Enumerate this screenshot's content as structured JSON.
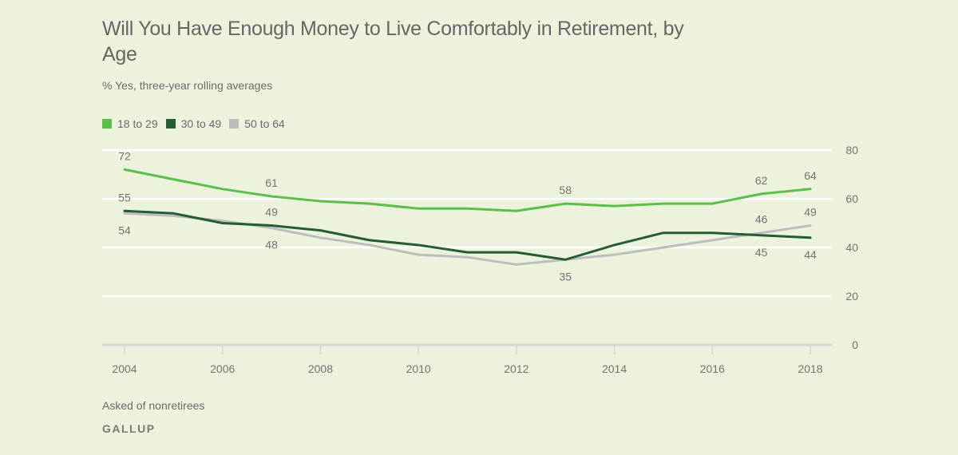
{
  "chart_data": {
    "type": "line",
    "title": "Will You Have Enough Money to Live Comfortably in Retirement, by Age",
    "subtitle": "% Yes, three-year rolling averages",
    "xlabel": "",
    "ylabel": "",
    "x": [
      2004,
      2005,
      2006,
      2007,
      2008,
      2009,
      2010,
      2011,
      2012,
      2013,
      2014,
      2015,
      2016,
      2017,
      2018
    ],
    "xticks": [
      "2004",
      "2006",
      "2008",
      "2010",
      "2012",
      "2014",
      "2016",
      "2018"
    ],
    "yticks": [
      "0",
      "20",
      "40",
      "60",
      "80"
    ],
    "ylim": [
      0,
      80
    ],
    "xlim": [
      2004,
      2018
    ],
    "grid": true,
    "legend_position": "top-left",
    "series": [
      {
        "name": "18 to 29",
        "color": "#5cbf4a",
        "values": [
          72,
          68,
          64,
          61,
          59,
          58,
          56,
          56,
          55,
          58,
          57,
          58,
          58,
          62,
          64
        ]
      },
      {
        "name": "30 to 49",
        "color": "#255c33",
        "values": [
          55,
          54,
          50,
          49,
          47,
          43,
          41,
          38,
          38,
          35,
          41,
          46,
          46,
          45,
          44
        ]
      },
      {
        "name": "50 to 64",
        "color": "#bdbdbd",
        "values": [
          54,
          53,
          51,
          48,
          44,
          41,
          37,
          36,
          33,
          35,
          37,
          40,
          43,
          46,
          49
        ]
      }
    ],
    "annotations": [
      {
        "series": 0,
        "x": 2004,
        "label": "72",
        "pos": "above"
      },
      {
        "series": 0,
        "x": 2007,
        "label": "61",
        "pos": "above"
      },
      {
        "series": 0,
        "x": 2013,
        "label": "58",
        "pos": "above"
      },
      {
        "series": 0,
        "x": 2017,
        "label": "62",
        "pos": "above"
      },
      {
        "series": 0,
        "x": 2018,
        "label": "64",
        "pos": "above"
      },
      {
        "series": 1,
        "x": 2004,
        "label": "55",
        "pos": "above"
      },
      {
        "series": 1,
        "x": 2007,
        "label": "49",
        "pos": "above"
      },
      {
        "series": 1,
        "x": 2013,
        "label": "35",
        "pos": "below"
      },
      {
        "series": 1,
        "x": 2017,
        "label": "45",
        "pos": "below"
      },
      {
        "series": 1,
        "x": 2018,
        "label": "44",
        "pos": "below"
      },
      {
        "series": 2,
        "x": 2004,
        "label": "54",
        "pos": "below"
      },
      {
        "series": 2,
        "x": 2007,
        "label": "48",
        "pos": "below"
      },
      {
        "series": 2,
        "x": 2017,
        "label": "46",
        "pos": "above"
      },
      {
        "series": 2,
        "x": 2018,
        "label": "49",
        "pos": "above"
      }
    ]
  },
  "footer": {
    "note": "Asked of nonretirees",
    "brand": "GALLUP"
  }
}
